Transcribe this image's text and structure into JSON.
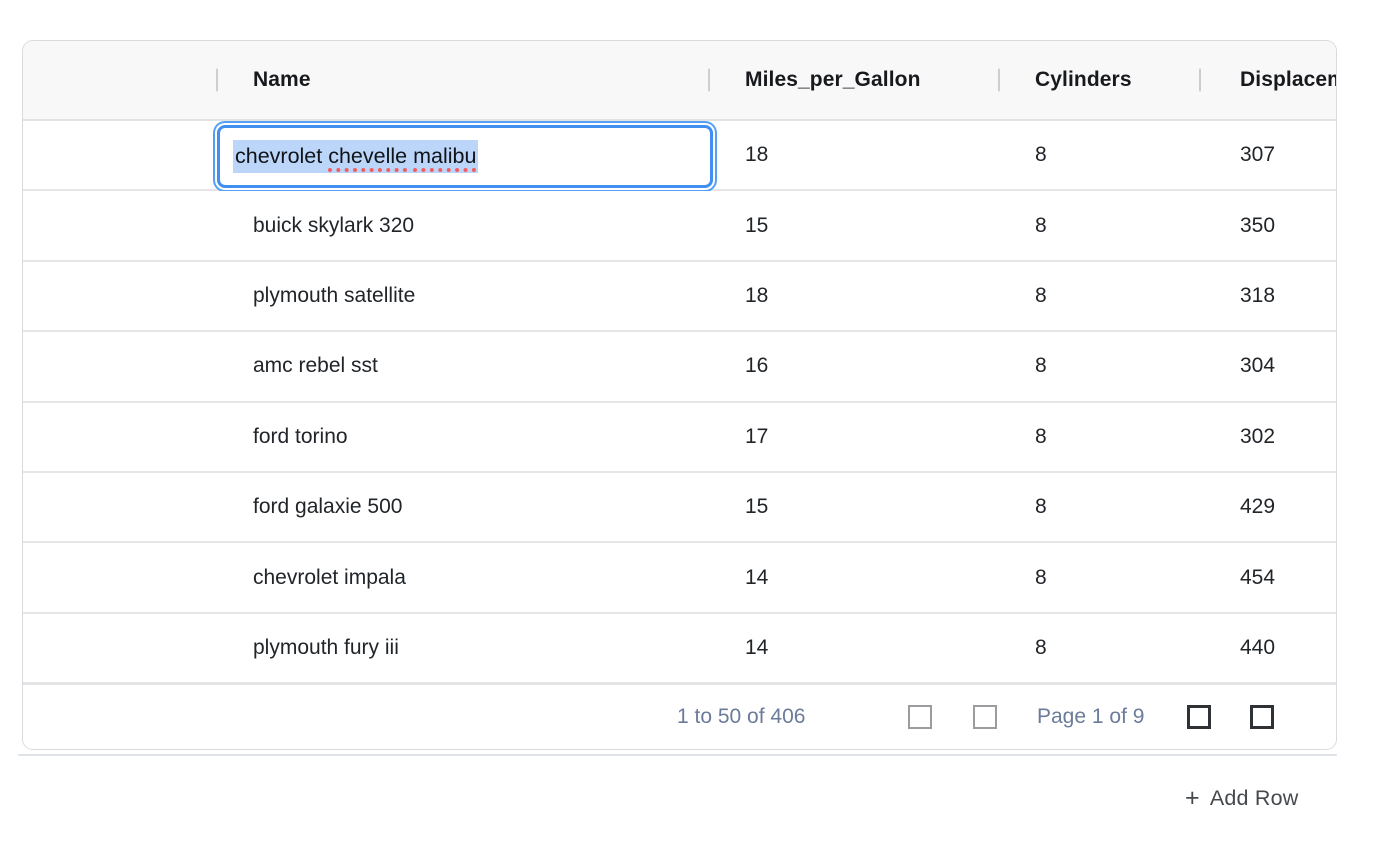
{
  "table": {
    "columns": [
      "Name",
      "Miles_per_Gallon",
      "Cylinders",
      "Displacement"
    ],
    "rows": [
      {
        "Name": "chevrolet chevelle malibu",
        "Miles_per_Gallon": "18",
        "Cylinders": "8",
        "Displacement": "307"
      },
      {
        "Name": "buick skylark 320",
        "Miles_per_Gallon": "15",
        "Cylinders": "8",
        "Displacement": "350"
      },
      {
        "Name": "plymouth satellite",
        "Miles_per_Gallon": "18",
        "Cylinders": "8",
        "Displacement": "318"
      },
      {
        "Name": "amc rebel sst",
        "Miles_per_Gallon": "16",
        "Cylinders": "8",
        "Displacement": "304"
      },
      {
        "Name": "ford torino",
        "Miles_per_Gallon": "17",
        "Cylinders": "8",
        "Displacement": "302"
      },
      {
        "Name": "ford galaxie 500",
        "Miles_per_Gallon": "15",
        "Cylinders": "8",
        "Displacement": "429"
      },
      {
        "Name": "chevrolet impala",
        "Miles_per_Gallon": "14",
        "Cylinders": "8",
        "Displacement": "454"
      },
      {
        "Name": "plymouth fury iii",
        "Miles_per_Gallon": "14",
        "Cylinders": "8",
        "Displacement": "440"
      }
    ],
    "editor": {
      "row_index": 0,
      "column": "Name",
      "value": "chevrolet chevelle malibu",
      "text_selected": true,
      "tokens": [
        {
          "text": "chevrolet ",
          "misspelled": false
        },
        {
          "text": "chevelle",
          "misspelled": true
        },
        {
          "text": " ",
          "misspelled": false
        },
        {
          "text": "malibu",
          "misspelled": true
        }
      ]
    },
    "pagination": {
      "summary": "1 to 50 of 406",
      "page_label": "Page 1 of 9",
      "buttons": [
        {
          "name": "first-page",
          "enabled": false
        },
        {
          "name": "previous-page",
          "enabled": false
        },
        {
          "name": "next-page",
          "enabled": true
        },
        {
          "name": "last-page",
          "enabled": true
        }
      ]
    },
    "add_row": {
      "icon": "+",
      "label": "Add Row"
    }
  },
  "colors": {
    "focus_ring": "#418ff0",
    "text_selection": "#bcd6fa",
    "spellcheck_underline": "#ef5f63",
    "pagination_text": "#6b7b9a",
    "header_background": "#f8f8f9",
    "cell_text": "#212529",
    "row_separator": "#e6e6e8"
  }
}
